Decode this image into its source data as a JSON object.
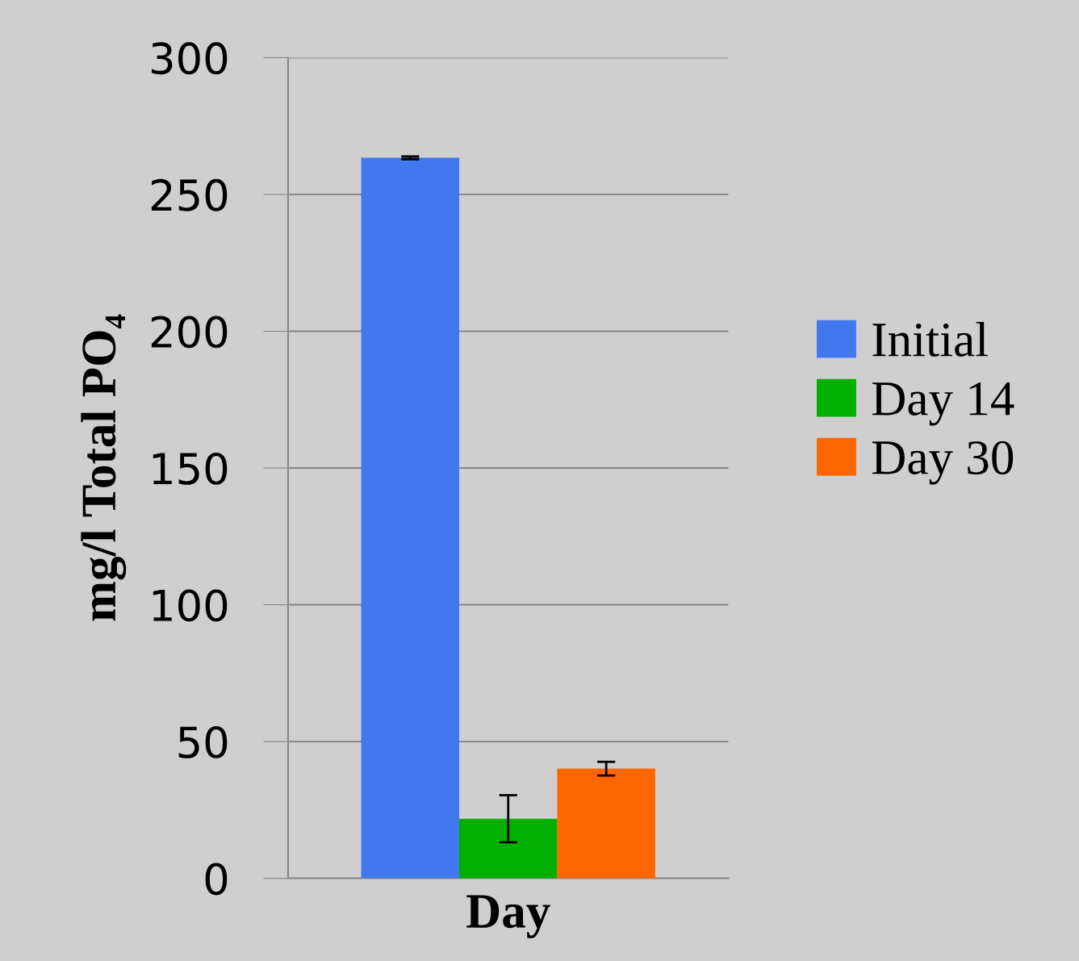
{
  "chart_data": {
    "type": "bar",
    "xlabel": "Day",
    "ylabel": "mg/l Total PO₄",
    "categories": [
      null
    ],
    "series": [
      {
        "name": "Initial",
        "color": "#4178f0",
        "values": [
          263.4
        ],
        "errors": [
          0.5
        ]
      },
      {
        "name": "Day 14",
        "color": "#00b000",
        "values": [
          21.8
        ],
        "errors": [
          8.6
        ]
      },
      {
        "name": "Day 30",
        "color": "#ff6600",
        "values": [
          40.1
        ],
        "errors": [
          2.5
        ]
      }
    ],
    "ylim": [
      0,
      300
    ],
    "yticks": [
      0,
      50,
      100,
      150,
      200,
      250,
      300
    ],
    "grid": "y",
    "legend": "right"
  }
}
